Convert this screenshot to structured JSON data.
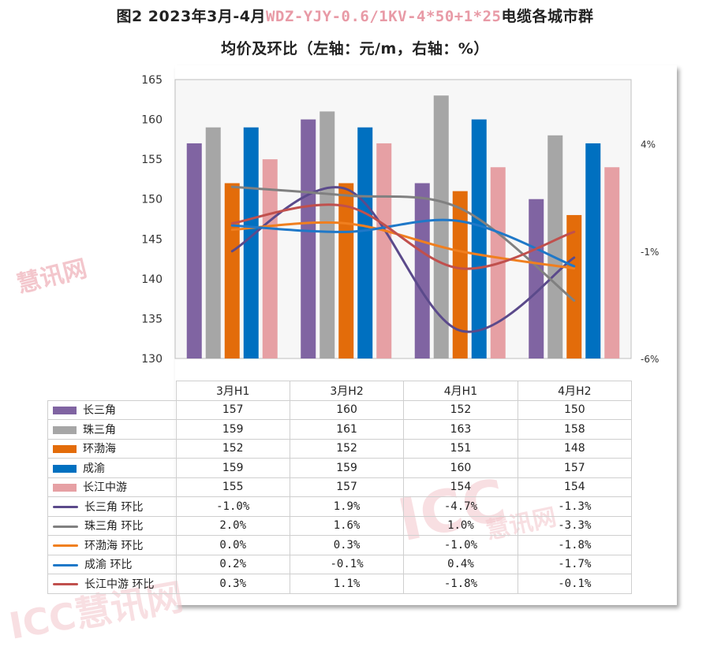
{
  "title": {
    "line1_prefix": "图2 2023年3月-4月",
    "line1_code": "WDZ-YJY-0.6/1KV-4*50+1*25",
    "line1_suffix": "电缆各城市群",
    "line2": "均价及环比（左轴：元/m，右轴：%）"
  },
  "watermarks": {
    "w1": "慧讯网",
    "w2": "ICC",
    "w3": "慧讯网",
    "w4": "ICC慧讯网"
  },
  "chart_data": {
    "type": "bar",
    "categories": [
      "3月H1",
      "3月H2",
      "4月H1",
      "4月H2"
    ],
    "y_left": {
      "min": 130,
      "max": 165,
      "step": 5,
      "ticks": [
        "130",
        "135",
        "140",
        "145",
        "150",
        "155",
        "160",
        "165"
      ]
    },
    "y_right": {
      "min": -6,
      "max": 7,
      "ticks": [
        {
          "v": 4,
          "label": "4%"
        },
        {
          "v": -1,
          "label": "-1%"
        },
        {
          "v": -6,
          "label": "-6%"
        }
      ]
    },
    "bar_series": [
      {
        "name": "长三角",
        "color": "#8064a2",
        "values": [
          157,
          160,
          152,
          150
        ]
      },
      {
        "name": "珠三角",
        "color": "#a6a6a6",
        "values": [
          159,
          161,
          163,
          158
        ]
      },
      {
        "name": "环渤海",
        "color": "#e36c0a",
        "values": [
          152,
          152,
          151,
          148
        ]
      },
      {
        "name": "成渝",
        "color": "#0070c0",
        "values": [
          159,
          159,
          160,
          157
        ]
      },
      {
        "name": "长江中游",
        "color": "#e6a0a4",
        "values": [
          155,
          157,
          154,
          154
        ]
      }
    ],
    "line_series": [
      {
        "name": "长三角 环比",
        "color": "#5b4a8b",
        "values": [
          -1.0,
          1.9,
          -4.7,
          -1.3
        ],
        "labels": [
          "-1.0%",
          "1.9%",
          "-4.7%",
          "-1.3%"
        ]
      },
      {
        "name": "珠三角 环比",
        "color": "#808080",
        "values": [
          2.0,
          1.6,
          1.0,
          -3.3
        ],
        "labels": [
          "2.0%",
          "1.6%",
          "1.0%",
          "-3.3%"
        ]
      },
      {
        "name": "环渤海 环比",
        "color": "#f07f1f",
        "values": [
          0.0,
          0.3,
          -1.0,
          -1.8
        ],
        "labels": [
          "0.0%",
          "0.3%",
          "-1.0%",
          "-1.8%"
        ]
      },
      {
        "name": "成渝 环比",
        "color": "#1f78c8",
        "values": [
          0.2,
          -0.1,
          0.4,
          -1.7
        ],
        "labels": [
          "0.2%",
          "-0.1%",
          "0.4%",
          "-1.7%"
        ]
      },
      {
        "name": "长江中游 环比",
        "color": "#c0504d",
        "values": [
          0.3,
          1.1,
          -1.8,
          -0.1
        ],
        "labels": [
          "0.3%",
          "1.1%",
          "-1.8%",
          "-0.1%"
        ]
      }
    ]
  }
}
